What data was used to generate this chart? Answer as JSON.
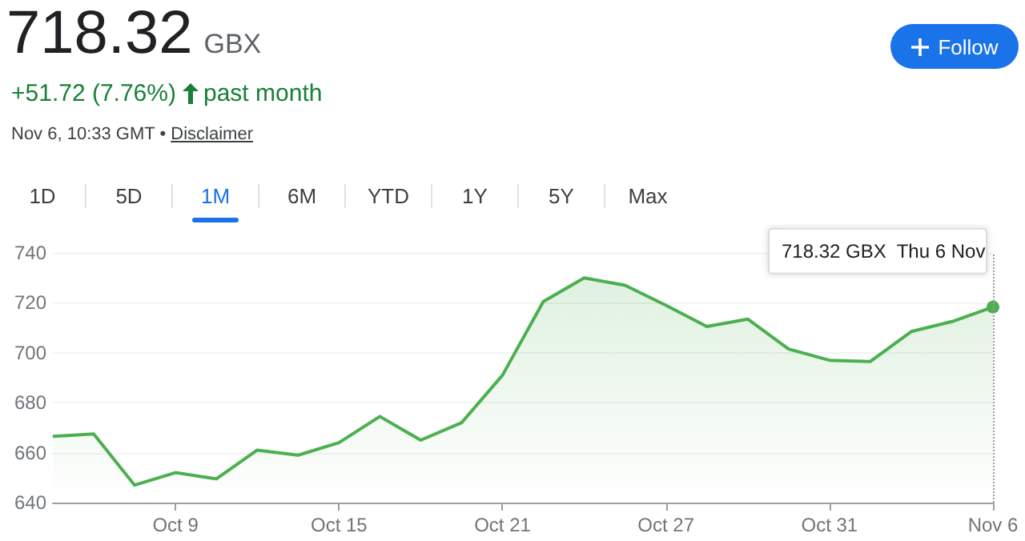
{
  "chart_data": {
    "type": "area",
    "title": "718.32",
    "subtitle": "GBX",
    "categories": [
      null,
      null,
      null,
      "Oct 9",
      null,
      null,
      null,
      "Oct 15",
      null,
      null,
      null,
      "Oct 21",
      null,
      null,
      null,
      "Oct 27",
      null,
      null,
      null,
      "Oct 31",
      null,
      null,
      null,
      "Nov 6"
    ],
    "series": [
      {
        "color": "#4caf50",
        "values": [
          666.5,
          667.5,
          647,
          652,
          649.5,
          661,
          659,
          664,
          674.5,
          665,
          672,
          691,
          720.5,
          730,
          727,
          719,
          710.5,
          713.5,
          701.5,
          697,
          696.5,
          708.5,
          712.5,
          718.32
        ]
      }
    ],
    "ylim": [
      640,
      740
    ],
    "yticks": [
      640,
      660,
      680,
      700,
      720,
      740
    ],
    "grid": "y",
    "marker": "none",
    "line_style": "solid",
    "ref_lines": [
      {
        "axis": "x",
        "value": "Nov 6",
        "label": null,
        "line_style": "dotted",
        "color": "#9e9e9e"
      }
    ],
    "annotations": [
      "+51.72 (7.76%)",
      "past month",
      "Nov 6, 10:33 GMT •",
      "Disclaimer",
      "Follow",
      "1D",
      "5D",
      "1M",
      "6M",
      "YTD",
      "1Y",
      "5Y",
      "Max",
      {
        "text": "718.32 GBX  Thu 6 Nov",
        "x": "Nov 6",
        "y": 718.32
      }
    ]
  }
}
